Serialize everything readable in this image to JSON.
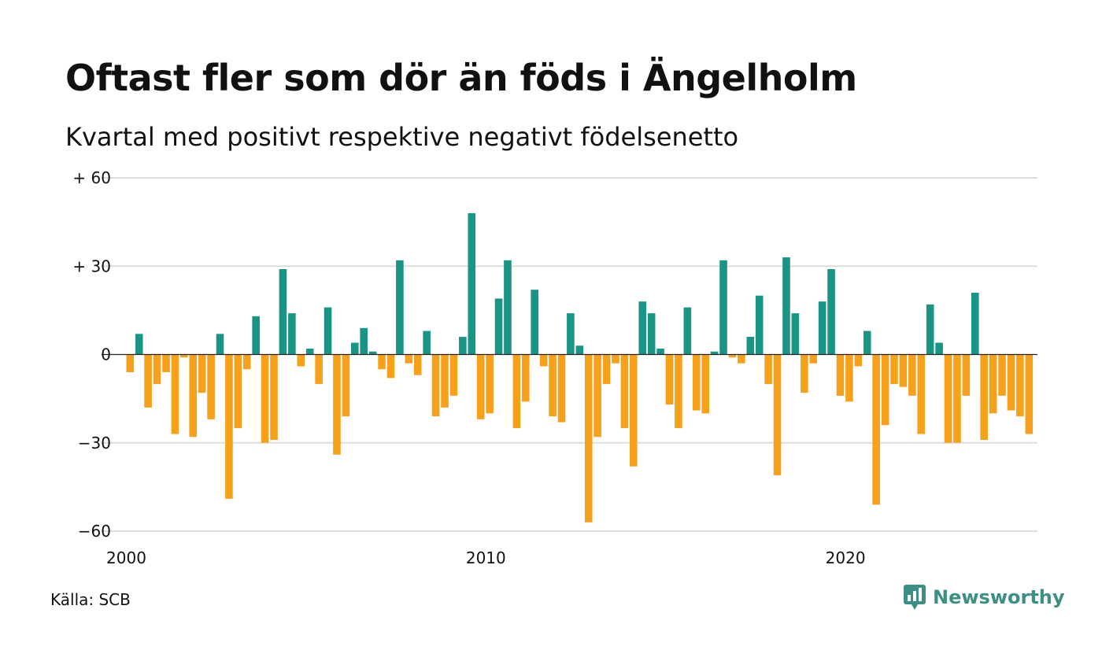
{
  "title": "Oftast fler som dör än föds i Ängelholm",
  "subtitle": "Kvartal med positivt respektive negativt födelsenetto",
  "source": "Källa: SCB",
  "brand": {
    "name": "Newsworthy",
    "icon": "newsworthy-logo-icon",
    "color": "#3b8f84"
  },
  "chart_data": {
    "type": "bar",
    "positive_color": "#1a9484",
    "negative_color": "#f5a11c",
    "grid": true,
    "ylim": [
      -60,
      60
    ],
    "y_ticks": [
      {
        "value": 60,
        "label": "+ 60"
      },
      {
        "value": 30,
        "label": "+ 30"
      },
      {
        "value": 0,
        "label": "0"
      },
      {
        "value": -30,
        "label": "−30"
      },
      {
        "value": -60,
        "label": "−60"
      }
    ],
    "x_ticks": [
      {
        "value": 2000,
        "label": "2000"
      },
      {
        "value": 2010,
        "label": "2010"
      },
      {
        "value": 2020,
        "label": "2020"
      }
    ],
    "quarter_start": "2000-Q1",
    "values": [
      -6,
      7,
      -18,
      -10,
      -6,
      -27,
      -1,
      -28,
      -13,
      -22,
      7,
      -49,
      -25,
      -5,
      13,
      -30,
      -29,
      29,
      14,
      -4,
      2,
      -10,
      16,
      -34,
      -21,
      4,
      9,
      1,
      -5,
      -8,
      32,
      -3,
      -7,
      8,
      -21,
      -18,
      -14,
      6,
      48,
      -22,
      -20,
      19,
      32,
      -25,
      -16,
      22,
      -4,
      -21,
      -23,
      14,
      3,
      -57,
      -28,
      -10,
      -3,
      -25,
      -38,
      18,
      14,
      2,
      -17,
      -25,
      16,
      -19,
      -20,
      1,
      32,
      -1,
      -3,
      6,
      20,
      -10,
      -41,
      33,
      14,
      -13,
      -3,
      18,
      29,
      -14,
      -16,
      -4,
      8,
      -51,
      -24,
      -10,
      -11,
      -14,
      -27,
      17,
      4,
      -30,
      -30,
      -14,
      21,
      -29,
      -20,
      -14,
      -19,
      -21,
      -27
    ]
  }
}
